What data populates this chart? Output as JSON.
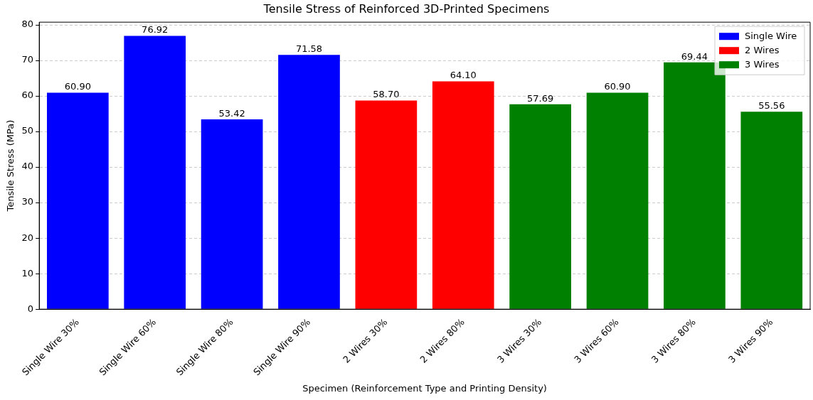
{
  "chart_data": {
    "type": "bar",
    "title": "Tensile Stress of Reinforced 3D-Printed Specimens",
    "xlabel": "Specimen (Reinforcement Type and Printing Density)",
    "ylabel": "Tensile Stress (MPa)",
    "categories": [
      "Single Wire 30%",
      "Single Wire 60%",
      "Single Wire 80%",
      "Single Wire 90%",
      "2 Wires 30%",
      "2 Wires 80%",
      "3 Wires 30%",
      "3 Wires 60%",
      "3 Wires 80%",
      "3 Wires 90%"
    ],
    "series": [
      {
        "name": "Single Wire",
        "color": "#0000ff",
        "values": [
          60.9,
          76.92,
          53.42,
          71.58,
          null,
          null,
          null,
          null,
          null,
          null
        ],
        "value_labels": [
          "60.90",
          "76.92",
          "53.42",
          "71.58",
          null,
          null,
          null,
          null,
          null,
          null
        ]
      },
      {
        "name": "2 Wires",
        "color": "#ff0000",
        "values": [
          null,
          null,
          null,
          null,
          58.7,
          64.1,
          null,
          null,
          null,
          null
        ],
        "value_labels": [
          null,
          null,
          null,
          null,
          "58.70",
          "64.10",
          null,
          null,
          null,
          null
        ]
      },
      {
        "name": "3 Wires",
        "color": "#008000",
        "values": [
          null,
          null,
          null,
          null,
          null,
          null,
          57.69,
          60.9,
          69.44,
          55.56
        ],
        "value_labels": [
          null,
          null,
          null,
          null,
          null,
          null,
          "57.69",
          "60.90",
          "69.44",
          "55.56"
        ]
      }
    ],
    "ylim": [
      0,
      80.77
    ],
    "yticks": [
      0,
      10,
      20,
      30,
      40,
      50,
      60,
      70,
      80
    ],
    "grid": "y",
    "line_style": "dashed",
    "legend": "top right"
  }
}
